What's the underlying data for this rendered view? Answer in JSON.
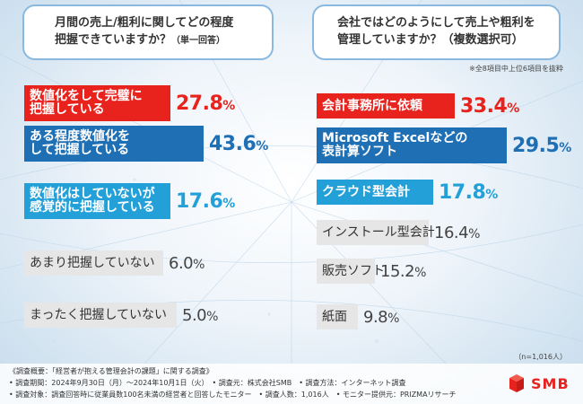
{
  "left_question": {
    "line1": "月間の売上/粗利に関してどの程度",
    "line2": "把握できていますか？",
    "sub": "（単一回答）"
  },
  "right_question": {
    "line1": "会社ではどのようにして売上や粗利を",
    "line2": "管理していますか？（複数選択可）",
    "note": "※全8項目中上位6項目を抜粋"
  },
  "sample_size": "（n=1,016人）",
  "footer": {
    "line1": "《調査概要：「経営者が抱える管理会計の課題」に関する調査》",
    "line2": "• 調査期間：2024年9月30日（月）～2024年10月1日（火）　• 調査元：株式会社SMB　• 調査方法：インターネット調査",
    "line3": "• 調査対象：調査回答時に従業員数100名未満の経営者と回答したモニター　• 調査人数：1,016人　• モニター提供元：PRIZMAリサーチ"
  },
  "logo_text": "SMB",
  "colors": {
    "red": "#e8231e",
    "blue": "#1f6fb5",
    "cyan": "#23a0d8",
    "gray": "#e6e6e6"
  },
  "chart_data": [
    {
      "type": "bar",
      "title": "月間の売上/粗利に関してどの程度把握できていますか？（単一回答）",
      "unit": "%",
      "categories": [
        [
          "数値化をして完璧に",
          "把握している"
        ],
        [
          "ある程度数値化を",
          "して把握している"
        ],
        [
          "数値化はしていないが",
          "感覚的に把握している"
        ],
        [
          "あまり把握していない"
        ],
        [
          "まったく把握していない"
        ]
      ],
      "values": [
        27.8,
        43.6,
        17.6,
        6.0,
        5.0
      ],
      "labels": [
        "27.8",
        "43.6",
        "17.6",
        "6.0",
        "5.0"
      ],
      "styles": [
        "red",
        "blue",
        "cyan",
        "gray",
        "gray"
      ]
    },
    {
      "type": "bar",
      "title": "会社ではどのようにして売上や粗利を管理していますか？（複数選択可）",
      "unit": "%",
      "categories": [
        [
          "会計事務所に依頼"
        ],
        [
          "Microsoft Excelなどの",
          "表計算ソフト"
        ],
        [
          "クラウド型会計"
        ],
        [
          "インストール型会計"
        ],
        [
          "販売ソフト"
        ],
        [
          "紙面"
        ]
      ],
      "values": [
        33.4,
        29.5,
        17.8,
        16.4,
        15.2,
        9.8
      ],
      "labels": [
        "33.4",
        "29.5",
        "17.8",
        "16.4",
        "15.2",
        "9.8"
      ],
      "styles": [
        "red",
        "blue",
        "cyan",
        "gray",
        "gray",
        "gray"
      ]
    }
  ]
}
